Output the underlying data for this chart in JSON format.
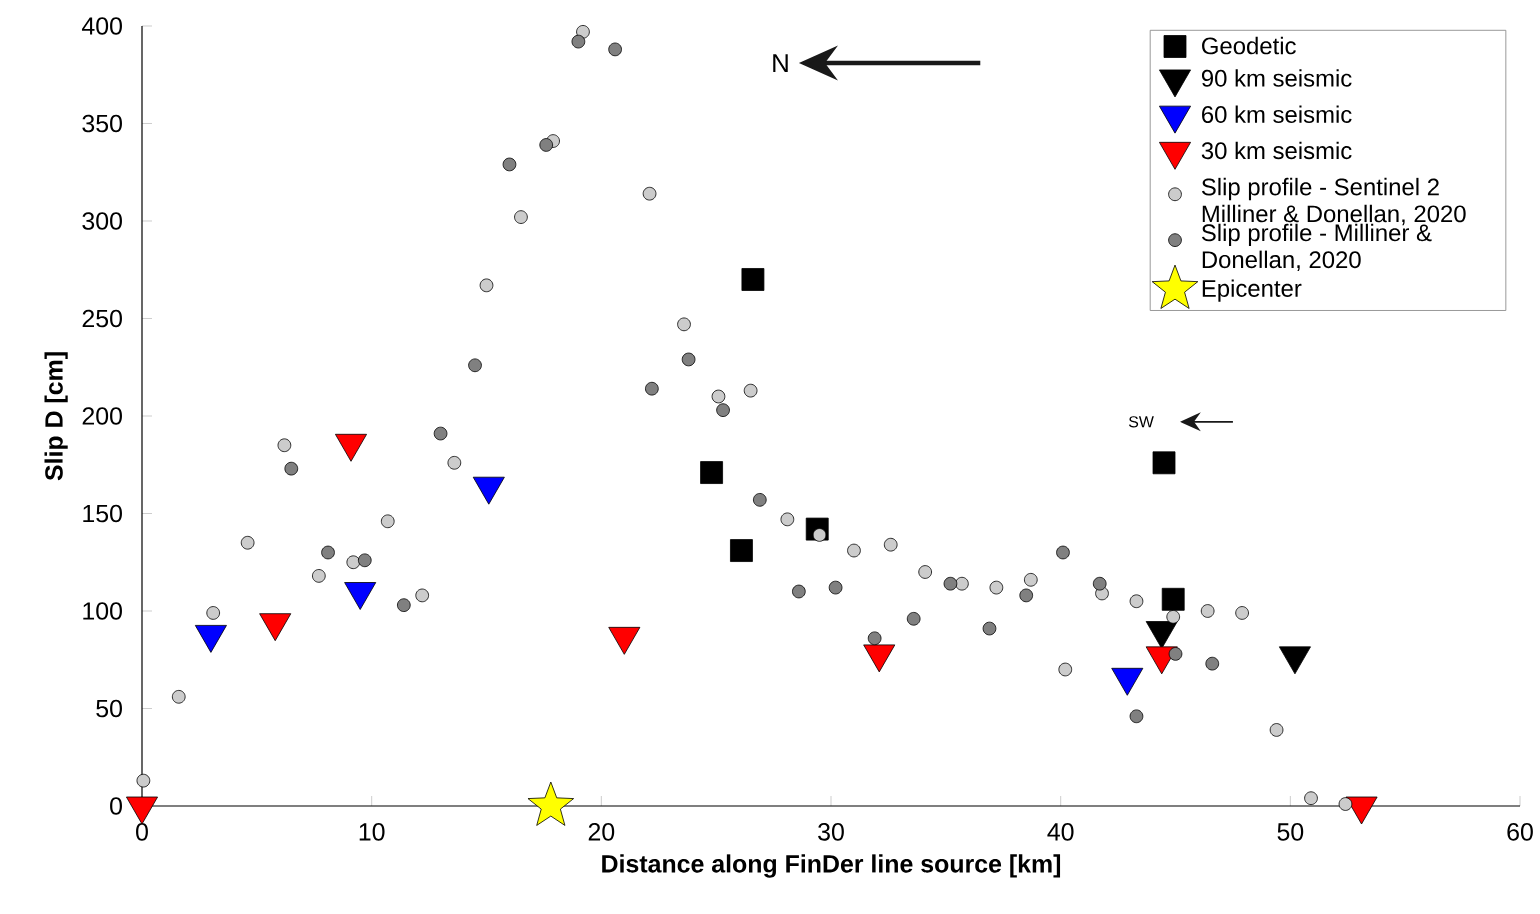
{
  "chart_data": {
    "type": "scatter",
    "xlabel": "Distance along FinDer line source [km]",
    "ylabel": "Slip D [cm]",
    "xlim": [
      0,
      60
    ],
    "ylim": [
      0,
      400
    ],
    "xticks": [
      0,
      10,
      20,
      30,
      40,
      50,
      60
    ],
    "yticks": [
      0,
      50,
      100,
      150,
      200,
      250,
      300,
      350,
      400
    ],
    "legend": "top right",
    "grid": false,
    "annotations": [
      "N",
      "SW"
    ],
    "series": [
      {
        "name": "Geodetic",
        "marker": "square",
        "color": "#000000",
        "x": [
          26.6,
          24.8,
          26.1,
          29.4,
          44.5,
          44.9
        ],
        "values": [
          270,
          171,
          131,
          142,
          176,
          106
        ]
      },
      {
        "name": "90 km seismic",
        "marker": "triangle",
        "color": "#000000",
        "x": [
          44.4,
          50.2
        ],
        "values": [
          90,
          77
        ]
      },
      {
        "name": "60 km seismic",
        "marker": "triangle",
        "color": "#0000ff",
        "x": [
          3.0,
          9.5,
          15.1,
          42.9
        ],
        "values": [
          88,
          110,
          164,
          66
        ]
      },
      {
        "name": "30 km seismic",
        "marker": "triangle",
        "color": "#ff0000",
        "x": [
          0,
          5.8,
          9.1,
          21.0,
          32.1,
          44.4,
          53.1
        ],
        "values": [
          0,
          94,
          186,
          87,
          78,
          77,
          0
        ]
      },
      {
        "name": "Slip profile - Sentinel 2 Milliner & Donellan, 2020",
        "marker": "circle",
        "color": "#cccccc",
        "x": [
          0.06,
          1.6,
          3.1,
          4.6,
          6.2,
          7.7,
          9.2,
          10.7,
          12.2,
          13.6,
          15.0,
          16.5,
          17.9,
          19.2,
          22.1,
          23.6,
          25.1,
          26.5,
          28.1,
          29.5,
          31.0,
          32.6,
          34.1,
          35.7,
          37.2,
          38.7,
          40.2,
          41.8,
          43.3,
          44.9,
          46.4,
          47.9,
          49.4,
          50.9,
          52.4
        ],
        "values": [
          13,
          56,
          99,
          135,
          185,
          118,
          125,
          146,
          108,
          176,
          267,
          302,
          341,
          397,
          314,
          247,
          210,
          213,
          147,
          139,
          131,
          134,
          120,
          114,
          112,
          116,
          70,
          109,
          105,
          97,
          100,
          99,
          39,
          4,
          1
        ]
      },
      {
        "name": "Slip profile - Milliner & Donellan, 2020",
        "marker": "circle",
        "color": "#808080",
        "x": [
          6.5,
          8.1,
          9.7,
          11.4,
          13.0,
          14.5,
          16.0,
          17.6,
          19.0,
          20.6,
          22.2,
          23.8,
          25.3,
          26.9,
          28.6,
          30.2,
          31.9,
          33.6,
          35.2,
          36.9,
          38.5,
          40.1,
          41.7,
          43.3,
          45.0,
          46.6
        ],
        "values": [
          173,
          130,
          126,
          103,
          191,
          226,
          329,
          339,
          392,
          388,
          214,
          229,
          203,
          157,
          110,
          112,
          86,
          96,
          114,
          91,
          108,
          130,
          114,
          46,
          78,
          73
        ]
      },
      {
        "name": "Epicenter",
        "marker": "star",
        "color": "#ffff00",
        "x": [
          17.8
        ],
        "values": [
          0
        ]
      }
    ]
  }
}
